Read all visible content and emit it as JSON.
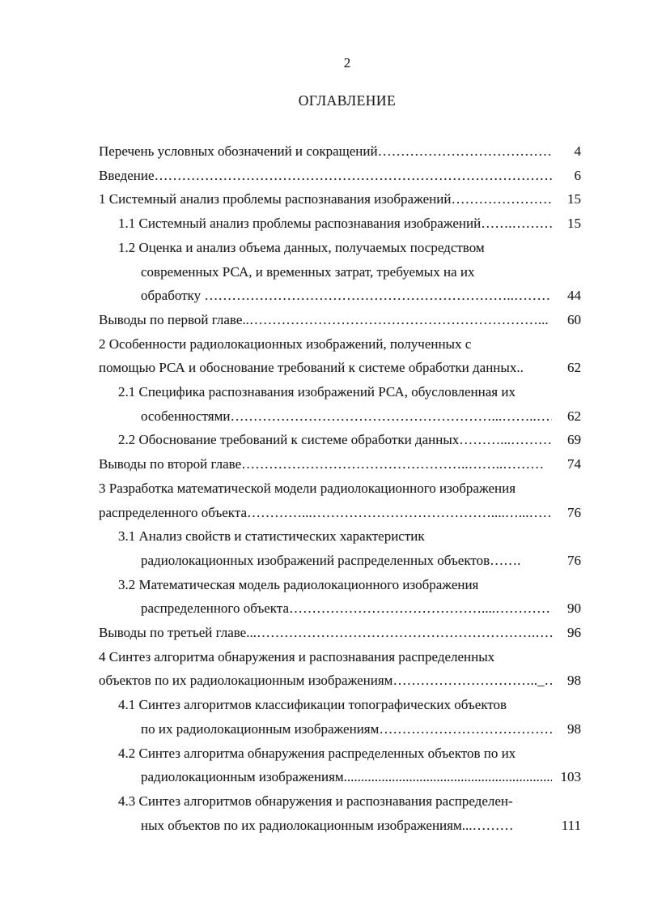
{
  "document": {
    "page_number": "2",
    "heading": "ОГЛАВЛЕНИЕ",
    "toc_lines": [
      {
        "indent": 0,
        "text": "Перечень условных обозначений и сокращений",
        "leader": "……………………………………………………………",
        "page": "4"
      },
      {
        "indent": 0,
        "text": "Введение",
        "leader": "……………………………………………………………………………",
        "page": "6"
      },
      {
        "indent": 0,
        "text": "1 Системный анализ проблемы распознавания изображений",
        "leader": "……………………………………",
        "page": "15"
      },
      {
        "indent": 1,
        "text": "1.1 Системный анализ проблемы распознавания изображений",
        "leader": "…….…………………",
        "page": "15"
      },
      {
        "indent": 1,
        "text": "1.2 Оценка и анализ объема данных, получаемых посредством",
        "leader": "",
        "page": ""
      },
      {
        "indent": 2,
        "text": "современных РСА, и временных затрат, требуемых на их",
        "leader": "",
        "page": ""
      },
      {
        "indent": 2,
        "text": "обработку ",
        "leader": "…………………………………………………………..……………",
        "page": "44"
      },
      {
        "indent": 0,
        "text": "Выводы по первой главе..",
        "leader": "………………………………………………………...",
        "page": "60"
      },
      {
        "indent": 0,
        "text": "2 Особенности радиолокационных изображений, полученных с",
        "leader": "",
        "page": ""
      },
      {
        "indent": 0,
        "text": "помощью РСА и обоснование требований к системе обработки данных..",
        "leader": "",
        "page": "62"
      },
      {
        "indent": 1,
        "text": "2.1 Специфика распознавания изображений РСА, обусловленная их",
        "leader": "",
        "page": ""
      },
      {
        "indent": 2,
        "text": "особенностями",
        "leader": "…………………………………………………...……..………",
        "page": "62"
      },
      {
        "indent": 1,
        "text": "2.2 Обоснование требований к системе обработки данных",
        "leader": "………...…………",
        "page": "69"
      },
      {
        "indent": 0,
        "text": "Выводы по второй главе",
        "leader": "…………………………………………..……..………",
        "page": "74"
      },
      {
        "indent": 0,
        "text": "3 Разработка математической модели радиолокационного изображения",
        "leader": "",
        "page": ""
      },
      {
        "indent": 0,
        "text": "распределенного объекта",
        "leader": "…………...…………………………………....…...………",
        "page": "76"
      },
      {
        "indent": 1,
        "text": "3.1 Анализ свойств и статистических характеристик",
        "leader": "",
        "page": ""
      },
      {
        "indent": 2,
        "text": "радиолокационных изображений распределенных объектов",
        "leader": "…….",
        "page": "76"
      },
      {
        "indent": 1,
        "text": "3.2 Математическая модель радиолокационного изображения",
        "leader": "",
        "page": ""
      },
      {
        "indent": 2,
        "text": "распределенного объекта",
        "leader": "……………………………………....………………",
        "page": "90"
      },
      {
        "indent": 0,
        "text": "Выводы по третьей главе...",
        "leader": "…………………………………………………….………",
        "page": "96"
      },
      {
        "indent": 0,
        "text": "4 Синтез алгоритма обнаружения и распознавания распределенных",
        "leader": "",
        "page": ""
      },
      {
        "indent": 0,
        "text": "объектов по их радиолокационным изображениям",
        "leader": "………………………….._……",
        "page": "98"
      },
      {
        "indent": 1,
        "text": "4.1 Синтез алгоритмов классификации топографических объектов",
        "leader": "",
        "page": ""
      },
      {
        "indent": 2,
        "text": "по их радиолокационным изображениям",
        "leader": "…………………………………….",
        "page": "98"
      },
      {
        "indent": 1,
        "text": "4.2 Синтез алгоритма обнаружения распределенных объектов по их",
        "leader": "",
        "page": ""
      },
      {
        "indent": 2,
        "text": "радиолокационным изображениям",
        "leader": "....................................................................................",
        "page": "103"
      },
      {
        "indent": 1,
        "text": "4.3 Синтез алгоритмов обнаружения и распознавания распределен-",
        "leader": "",
        "page": ""
      },
      {
        "indent": 2,
        "text": "ных объектов по их радиолокационным изображениям...",
        "leader": "………",
        "page": "111"
      }
    ]
  },
  "colors": {
    "text_color": "#1e1e1e",
    "page_background": "#ffffff"
  }
}
